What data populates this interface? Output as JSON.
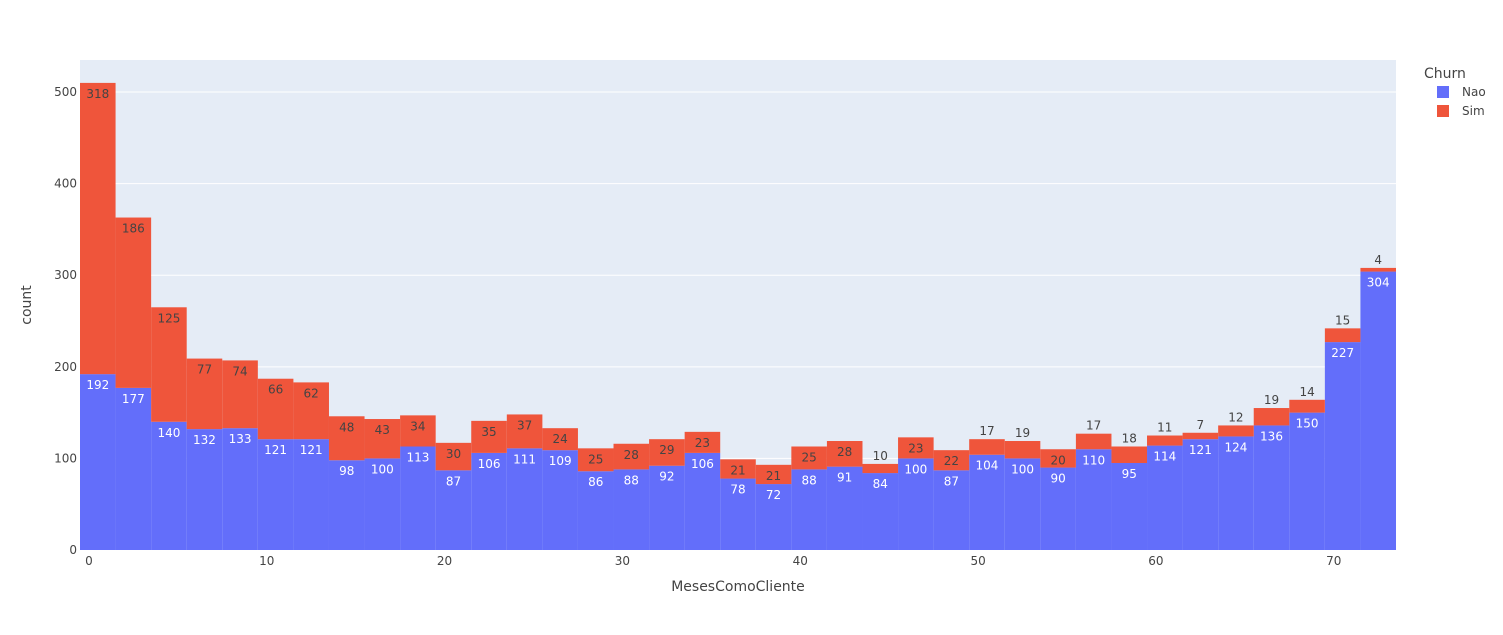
{
  "chart_data": {
    "type": "bar",
    "barmode": "stack",
    "xlabel": "MesesComoCliente",
    "ylabel": "count",
    "xlim": [
      -0.5,
      73.5
    ],
    "ylim": [
      0,
      535
    ],
    "x_ticks": [
      0,
      10,
      20,
      30,
      40,
      50,
      60,
      70
    ],
    "y_ticks": [
      0,
      100,
      200,
      300,
      400,
      500
    ],
    "bin_width": 2,
    "bin_starts": [
      -0.5,
      1.5,
      3.5,
      5.5,
      7.5,
      9.5,
      11.5,
      13.5,
      15.5,
      17.5,
      19.5,
      21.5,
      23.5,
      25.5,
      27.5,
      29.5,
      31.5,
      33.5,
      35.5,
      37.5,
      39.5,
      41.5,
      43.5,
      45.5,
      47.5,
      49.5,
      51.5,
      53.5,
      55.5,
      57.5,
      59.5,
      61.5,
      63.5,
      65.5,
      67.5,
      69.5,
      71.5
    ],
    "legend": {
      "title": "Churn",
      "position": "top-right"
    },
    "grid": true,
    "series": [
      {
        "name": "Nao",
        "color": "#636efa",
        "label_color": "#ffffff",
        "values": [
          192,
          177,
          140,
          132,
          133,
          121,
          121,
          98,
          100,
          113,
          87,
          106,
          111,
          109,
          86,
          88,
          92,
          106,
          78,
          72,
          88,
          91,
          84,
          100,
          87,
          104,
          100,
          90,
          110,
          95,
          114,
          121,
          124,
          136,
          150,
          227,
          304
        ]
      },
      {
        "name": "Sim",
        "color": "#ef553b",
        "label_color": "#444444",
        "values": [
          318,
          186,
          125,
          77,
          74,
          66,
          62,
          48,
          43,
          34,
          30,
          35,
          37,
          24,
          25,
          28,
          29,
          23,
          21,
          21,
          25,
          28,
          10,
          23,
          22,
          17,
          19,
          20,
          17,
          18,
          11,
          7,
          12,
          19,
          14,
          15,
          4
        ]
      }
    ]
  }
}
